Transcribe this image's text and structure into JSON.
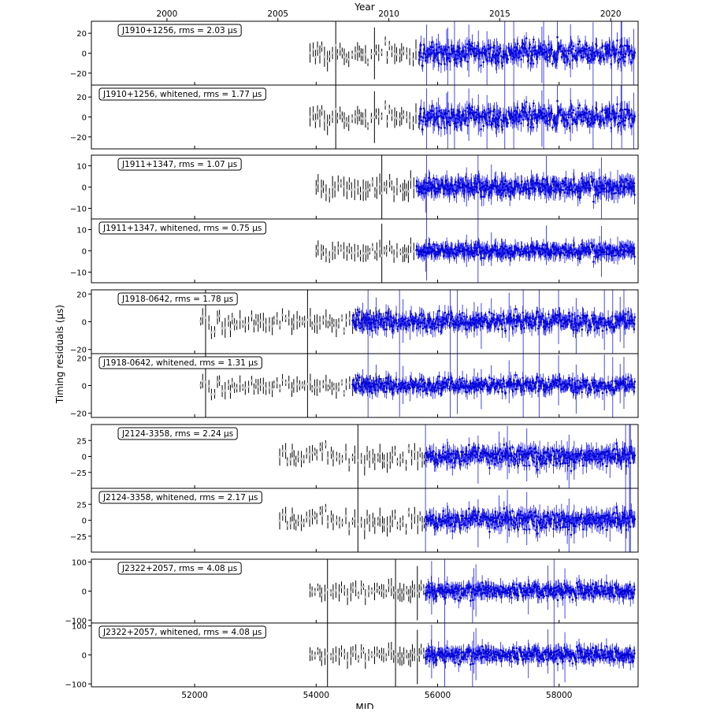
{
  "chart_data": {
    "type": "scatter",
    "top_axis_label": "Year",
    "top_ticks": [
      {
        "value": 2000,
        "label": "2000"
      },
      {
        "value": 2005,
        "label": "2005"
      },
      {
        "value": 2010,
        "label": "2010"
      },
      {
        "value": 2015,
        "label": "2015"
      },
      {
        "value": 2020,
        "label": "2020"
      }
    ],
    "xlabel": "MJD",
    "ylabel": "Timing residuals (μs)",
    "xlim": [
      50300,
      59300
    ],
    "x_ticks": [
      {
        "value": 52000,
        "label": "52000"
      },
      {
        "value": 54000,
        "label": "54000"
      },
      {
        "value": 56000,
        "label": "56000"
      },
      {
        "value": 58000,
        "label": "58000"
      }
    ],
    "panels": [
      {
        "label": "J1910+1256, rms = 2.03 μs",
        "ylim": [
          -32,
          32
        ],
        "y_ticks": [
          {
            "value": 20,
            "label": "20"
          },
          {
            "value": 0,
            "label": "0"
          },
          {
            "value": -20,
            "label": "−20"
          }
        ],
        "seg_gray": [
          53900,
          55700
        ],
        "seg_blue": [
          55700,
          59250
        ],
        "spread": 5,
        "err": 6,
        "gap_at": [
          56000
        ]
      },
      {
        "label": "J1910+1256, whitened, rms = 1.77 μs",
        "ylim": [
          -32,
          32
        ],
        "y_ticks": [
          {
            "value": 20,
            "label": "20"
          },
          {
            "value": 0,
            "label": "0"
          },
          {
            "value": -20,
            "label": "−20"
          }
        ],
        "seg_gray": [
          53900,
          55700
        ],
        "seg_blue": [
          55700,
          59250
        ],
        "spread": 5,
        "err": 6
      },
      {
        "label": "J1911+1347, rms = 1.07 μs",
        "ylim": [
          -15,
          15
        ],
        "y_ticks": [
          {
            "value": 10,
            "label": "10"
          },
          {
            "value": 0,
            "label": "0"
          },
          {
            "value": -10,
            "label": "−10"
          }
        ],
        "seg_gray": [
          54000,
          55650
        ],
        "seg_blue": [
          55650,
          59250
        ],
        "spread": 2,
        "err": 3
      },
      {
        "label": "J1911+1347, whitened, rms = 0.75 μs",
        "ylim": [
          -15,
          15
        ],
        "y_ticks": [
          {
            "value": 10,
            "label": "10"
          },
          {
            "value": 0,
            "label": "0"
          },
          {
            "value": -10,
            "label": "−10"
          }
        ],
        "seg_gray": [
          54000,
          55650
        ],
        "seg_blue": [
          55650,
          59250
        ],
        "spread": 1.5,
        "err": 2.5
      },
      {
        "label": "J1918-0642, rms = 1.78 μs",
        "ylim": [
          -23,
          23
        ],
        "y_ticks": [
          {
            "value": 20,
            "label": "20"
          },
          {
            "value": 0,
            "label": "0"
          },
          {
            "value": -20,
            "label": "−20"
          }
        ],
        "seg_gray": [
          52100,
          55300
        ],
        "seg_blue": [
          54600,
          59250
        ],
        "spread": 3,
        "err": 4
      },
      {
        "label": "J1918-0642, whitened, rms = 1.31 μs",
        "ylim": [
          -23,
          23
        ],
        "y_ticks": [
          {
            "value": 20,
            "label": "20"
          },
          {
            "value": 0,
            "label": "0"
          },
          {
            "value": -20,
            "label": "−20"
          }
        ],
        "seg_gray": [
          52100,
          55300
        ],
        "seg_blue": [
          54600,
          59250
        ],
        "spread": 2.5,
        "err": 3.5
      },
      {
        "label": "J2124-3358, rms = 2.24 μs",
        "ylim": [
          -50,
          50
        ],
        "y_ticks": [
          {
            "value": 25,
            "label": "25"
          },
          {
            "value": 0,
            "label": "0"
          },
          {
            "value": -25,
            "label": "−25"
          }
        ],
        "seg_gray": [
          53400,
          55800
        ],
        "seg_blue": [
          55800,
          59250
        ],
        "spread": 7,
        "err": 9
      },
      {
        "label": "J2124-3358, whitened, rms = 2.17 μs",
        "ylim": [
          -50,
          50
        ],
        "y_ticks": [
          {
            "value": 25,
            "label": "25"
          },
          {
            "value": 0,
            "label": "0"
          },
          {
            "value": -25,
            "label": "−25"
          }
        ],
        "seg_gray": [
          53400,
          55800
        ],
        "seg_blue": [
          55800,
          59250
        ],
        "spread": 7,
        "err": 9
      },
      {
        "label": "J2322+2057, rms = 4.08 μs",
        "ylim": [
          -110,
          110
        ],
        "y_ticks": [
          {
            "value": 100,
            "label": "100"
          },
          {
            "value": 0,
            "label": "0"
          },
          {
            "value": -100,
            "label": "−100"
          }
        ],
        "seg_gray": [
          53900,
          55800
        ],
        "seg_blue": [
          55800,
          59250
        ],
        "spread": 12,
        "err": 18
      },
      {
        "label": "J2322+2057, whitened, rms = 4.08 μs",
        "ylim": [
          -110,
          110
        ],
        "y_ticks": [
          {
            "value": 100,
            "label": "100"
          },
          {
            "value": 0,
            "label": "0"
          },
          {
            "value": -100,
            "label": "−100"
          }
        ],
        "seg_gray": [
          53900,
          55800
        ],
        "seg_blue": [
          55800,
          59250
        ],
        "spread": 12,
        "err": 18
      }
    ],
    "colors": {
      "early": "#c8c8c8",
      "late": "#0000cc",
      "error_early": "#000000",
      "error_late": "#1a1aee"
    }
  }
}
